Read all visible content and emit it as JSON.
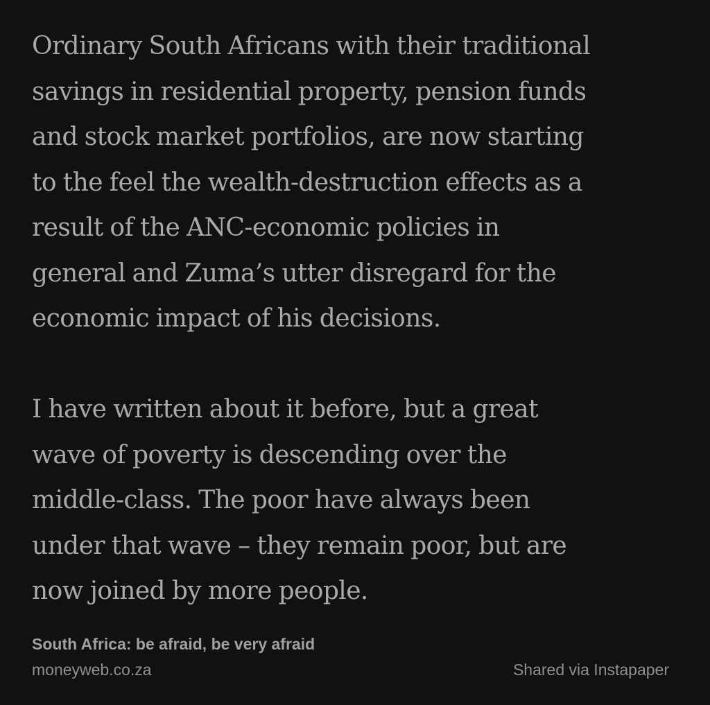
{
  "quote": {
    "paragraphs": [
      {
        "lines": [
          "Ordinary South Africans with their traditional",
          "savings in residential property, pension funds",
          "and stock market portfolios, are now starting",
          "to the feel the wealth-destruction effects as a",
          "result of the ANC-economic policies in",
          "general and Zuma’s utter disregard for the",
          "economic impact of his decisions."
        ]
      },
      {
        "lines": [
          "I have written about it before, but a great",
          "wave of poverty is descending over the",
          "middle-class. The poor have always been",
          "under that wave – they remain poor, but are",
          "now joined by more people."
        ]
      }
    ]
  },
  "footer": {
    "article_title": "South Africa: be afraid, be very afraid",
    "source_domain": "moneyweb.co.za",
    "shared_via": "Shared via Instapaper"
  },
  "colors": {
    "background": "#111111",
    "body_text": "#a9a9a9",
    "footer_text": "#909090"
  }
}
